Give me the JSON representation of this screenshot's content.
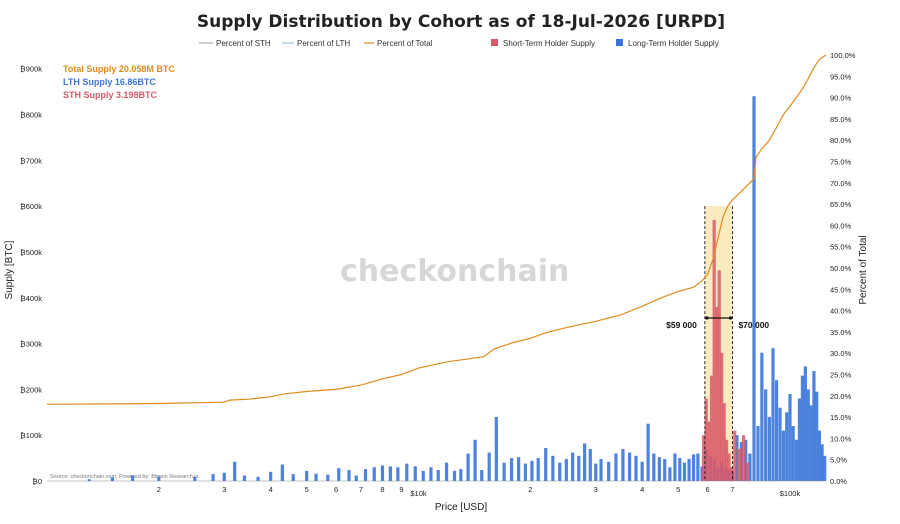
{
  "chart_data": {
    "type": "bar",
    "title": "Supply Distribution by Cohort as of 18-Jul-2026 [URPD]",
    "xlabel": "Price [USD]",
    "ylabel": "Supply [BTC]",
    "y2label": "Percent of Total",
    "x_scale": "log",
    "ylim": [
      0,
      930000
    ],
    "y2lim": [
      0,
      100
    ],
    "y_ticks": [
      "₿0",
      "₿100k",
      "₿200k",
      "₿300k",
      "₿400k",
      "₿500k",
      "₿600k",
      "₿700k",
      "₿800k",
      "₿900k"
    ],
    "y2_ticks": [
      "0.0%",
      "5.0%",
      "10.0%",
      "15.0%",
      "20.0%",
      "25.0%",
      "30.0%",
      "35.0%",
      "40.0%",
      "45.0%",
      "50.0%",
      "55.0%",
      "60.0%",
      "65.0%",
      "70.0%",
      "75.0%",
      "80.0%",
      "85.0%",
      "90.0%",
      "95.0%",
      "100.0%"
    ],
    "x_ticks": [
      {
        "value": 2000,
        "label": "2"
      },
      {
        "value": 3000,
        "label": "3"
      },
      {
        "value": 4000,
        "label": "4"
      },
      {
        "value": 5000,
        "label": "5"
      },
      {
        "value": 6000,
        "label": "6"
      },
      {
        "value": 7000,
        "label": "7"
      },
      {
        "value": 8000,
        "label": "8"
      },
      {
        "value": 9000,
        "label": "9"
      },
      {
        "value": 10000,
        "label": "$10k"
      },
      {
        "value": 20000,
        "label": "2"
      },
      {
        "value": 30000,
        "label": "3"
      },
      {
        "value": 40000,
        "label": "4"
      },
      {
        "value": 50000,
        "label": "5"
      },
      {
        "value": 60000,
        "label": "6"
      },
      {
        "value": 70000,
        "label": "7"
      },
      {
        "value": 100000,
        "label": "$100k"
      }
    ],
    "legend": [
      {
        "name": "Percent of STH",
        "color": "#b0b0b0",
        "kind": "line"
      },
      {
        "name": "Percent of LTH",
        "color": "#9fc4d4",
        "kind": "line"
      },
      {
        "name": "Percent of Total",
        "color": "#e08a1e",
        "kind": "line"
      },
      {
        "name": "Short-Term Holder Supply",
        "color": "#d9596a",
        "kind": "bar"
      },
      {
        "name": "Long-Term Holder Supply",
        "color": "#3a75d9",
        "kind": "bar"
      }
    ],
    "legend_placement": "top",
    "grid": false,
    "supply_info": {
      "total": "Total Supply 20.058M BTC",
      "lth": "LTH Supply 16.86BTC",
      "sth": "STH Supply 3.198BTC"
    },
    "highlight_range": {
      "from": 59000,
      "to": 70000,
      "label_from": "$59 000",
      "label_to": "$70 000"
    },
    "series": [
      {
        "name": "Long-Term Holder Supply",
        "color": "#3a75d9",
        "points": [
          [
            1300,
            4000
          ],
          [
            1500,
            8000
          ],
          [
            1700,
            12000
          ],
          [
            2000,
            10000
          ],
          [
            2500,
            9000
          ],
          [
            2800,
            15000
          ],
          [
            3000,
            18000
          ],
          [
            3200,
            42000
          ],
          [
            3400,
            12000
          ],
          [
            3700,
            9000
          ],
          [
            4000,
            20000
          ],
          [
            4300,
            36000
          ],
          [
            4600,
            15000
          ],
          [
            5000,
            22000
          ],
          [
            5300,
            16000
          ],
          [
            5700,
            14000
          ],
          [
            6100,
            28000
          ],
          [
            6500,
            24000
          ],
          [
            6800,
            12000
          ],
          [
            7200,
            26000
          ],
          [
            7600,
            30000
          ],
          [
            8000,
            34000
          ],
          [
            8400,
            32000
          ],
          [
            8800,
            30000
          ],
          [
            9300,
            38000
          ],
          [
            9800,
            32000
          ],
          [
            10300,
            22000
          ],
          [
            10800,
            30000
          ],
          [
            11300,
            24000
          ],
          [
            11900,
            40000
          ],
          [
            12500,
            22000
          ],
          [
            13000,
            26000
          ],
          [
            13600,
            60000
          ],
          [
            14200,
            90000
          ],
          [
            14800,
            24000
          ],
          [
            15500,
            62000
          ],
          [
            16200,
            140000
          ],
          [
            17000,
            40000
          ],
          [
            17800,
            50000
          ],
          [
            18600,
            52000
          ],
          [
            19400,
            38000
          ],
          [
            20200,
            44000
          ],
          [
            21000,
            50000
          ],
          [
            22000,
            72000
          ],
          [
            23000,
            55000
          ],
          [
            24000,
            40000
          ],
          [
            25000,
            48000
          ],
          [
            26000,
            62000
          ],
          [
            27000,
            55000
          ],
          [
            28000,
            82000
          ],
          [
            29000,
            70000
          ],
          [
            30000,
            38000
          ],
          [
            31000,
            48000
          ],
          [
            32500,
            42000
          ],
          [
            34000,
            60000
          ],
          [
            35500,
            70000
          ],
          [
            37000,
            62000
          ],
          [
            38500,
            55000
          ],
          [
            40000,
            42000
          ],
          [
            41500,
            125000
          ],
          [
            43000,
            60000
          ],
          [
            44500,
            52000
          ],
          [
            46000,
            48000
          ],
          [
            47500,
            30000
          ],
          [
            49000,
            60000
          ],
          [
            50500,
            50000
          ],
          [
            52000,
            40000
          ],
          [
            53500,
            48000
          ],
          [
            55000,
            58000
          ],
          [
            56500,
            60000
          ],
          [
            58000,
            32000
          ],
          [
            59500,
            70000
          ],
          [
            61000,
            55000
          ],
          [
            62500,
            48000
          ],
          [
            64000,
            30000
          ],
          [
            65500,
            40000
          ],
          [
            67000,
            28000
          ],
          [
            68500,
            25000
          ],
          [
            70000,
            22000
          ],
          [
            72000,
            100000
          ],
          [
            74000,
            85000
          ],
          [
            76000,
            90000
          ],
          [
            78000,
            60000
          ],
          [
            80000,
            840000
          ],
          [
            82000,
            120000
          ],
          [
            84000,
            280000
          ],
          [
            86000,
            200000
          ],
          [
            88000,
            140000
          ],
          [
            90000,
            290000
          ],
          [
            92000,
            220000
          ],
          [
            94000,
            160000
          ],
          [
            96000,
            110000
          ],
          [
            98000,
            150000
          ],
          [
            100000,
            190000
          ],
          [
            102000,
            120000
          ],
          [
            104000,
            90000
          ],
          [
            106000,
            180000
          ],
          [
            108000,
            230000
          ],
          [
            110000,
            250000
          ],
          [
            112000,
            200000
          ],
          [
            114000,
            165000
          ],
          [
            116000,
            240000
          ],
          [
            118000,
            195000
          ],
          [
            120000,
            110000
          ],
          [
            122000,
            80000
          ],
          [
            124000,
            55000
          ]
        ]
      },
      {
        "name": "Short-Term Holder Supply",
        "color": "#d9596a",
        "points": [
          [
            58500,
            100000
          ],
          [
            59500,
            180000
          ],
          [
            60500,
            130000
          ],
          [
            61500,
            230000
          ],
          [
            62500,
            570000
          ],
          [
            63500,
            380000
          ],
          [
            64500,
            460000
          ],
          [
            65500,
            280000
          ],
          [
            66500,
            170000
          ],
          [
            67500,
            90000
          ],
          [
            68500,
            60000
          ],
          [
            69500,
            30000
          ],
          [
            71000,
            110000
          ],
          [
            73000,
            70000
          ],
          [
            75000,
            100000
          ],
          [
            77000,
            40000
          ]
        ]
      },
      {
        "name": "Percent of Total",
        "color": "#e08a1e",
        "points": [
          [
            1000,
            18
          ],
          [
            2000,
            18.2
          ],
          [
            3000,
            18.5
          ],
          [
            3100,
            19
          ],
          [
            3500,
            19.2
          ],
          [
            4000,
            19.8
          ],
          [
            4400,
            20.5
          ],
          [
            5000,
            21
          ],
          [
            6000,
            21.5
          ],
          [
            7000,
            22.5
          ],
          [
            8000,
            24
          ],
          [
            9000,
            25
          ],
          [
            10000,
            26.5
          ],
          [
            12000,
            28
          ],
          [
            14000,
            28.8
          ],
          [
            15000,
            29.2
          ],
          [
            16000,
            31
          ],
          [
            18000,
            32.5
          ],
          [
            20000,
            33.5
          ],
          [
            22000,
            34.8
          ],
          [
            25000,
            36
          ],
          [
            30000,
            37.5
          ],
          [
            35000,
            39
          ],
          [
            40000,
            41
          ],
          [
            45000,
            43
          ],
          [
            50000,
            44.5
          ],
          [
            55000,
            45.5
          ],
          [
            58000,
            47
          ],
          [
            60000,
            48.5
          ],
          [
            62000,
            52
          ],
          [
            64000,
            57
          ],
          [
            66000,
            62
          ],
          [
            68000,
            64.5
          ],
          [
            70000,
            66
          ],
          [
            74000,
            68
          ],
          [
            78000,
            70
          ],
          [
            80000,
            71
          ],
          [
            81000,
            76
          ],
          [
            84000,
            78
          ],
          [
            88000,
            80
          ],
          [
            92000,
            83
          ],
          [
            96000,
            86
          ],
          [
            100000,
            88
          ],
          [
            104000,
            90
          ],
          [
            108000,
            92
          ],
          [
            112000,
            94.5
          ],
          [
            116000,
            97
          ],
          [
            120000,
            99
          ],
          [
            125000,
            100
          ]
        ]
      }
    ]
  },
  "watermark": "checkonchain",
  "source_note": "Source: checkonchain.com, Powered by: Bitcoin Research.io"
}
